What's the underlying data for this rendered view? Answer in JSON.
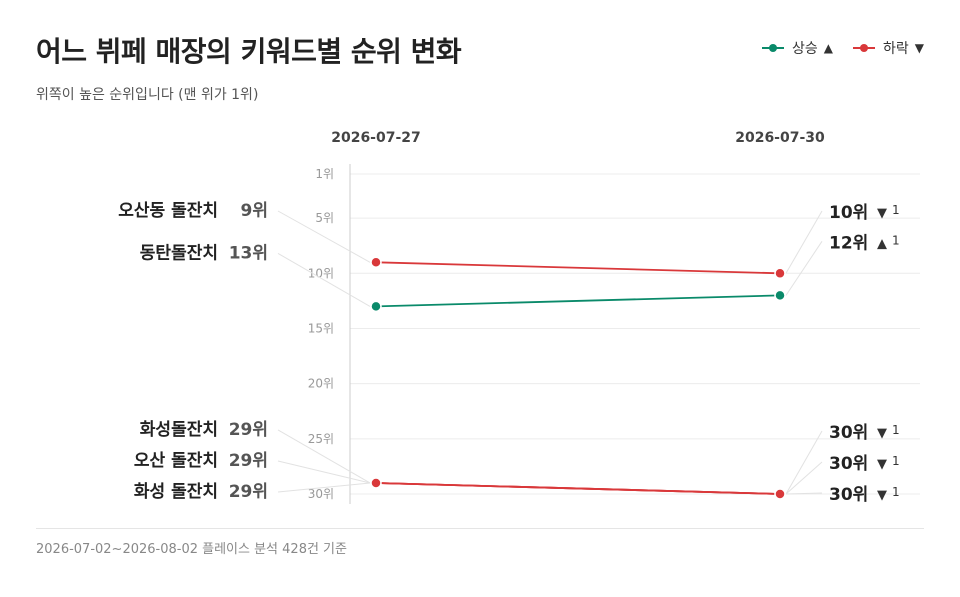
{
  "chart_data": {
    "type": "slope",
    "title": "어느 뷔페 매장의 키워드별 순위 변화",
    "subtitle": "위쪽이 높은 순위입니다 (맨 위가 1위)",
    "columns": [
      "2026-07-27",
      "2026-07-30"
    ],
    "y_axis": {
      "ticks": [
        "1위",
        "5위",
        "10위",
        "15위",
        "20위",
        "25위",
        "30위"
      ],
      "tick_values": [
        1,
        5,
        10,
        15,
        20,
        25,
        30
      ],
      "ylim": [
        1,
        30
      ],
      "inverted": true
    },
    "legend": [
      {
        "label": "상승",
        "arrow": "▲",
        "color": "#0a8a6a"
      },
      {
        "label": "하락",
        "arrow": "▼",
        "color": "#d9383a"
      }
    ],
    "series": [
      {
        "name": "오산동 돌잔치",
        "start": 9,
        "end": 10,
        "start_label": "9위",
        "end_label": "10위",
        "change_arrow": "▼",
        "change_value": "1",
        "trend": "down"
      },
      {
        "name": "동탄돌잔치",
        "start": 13,
        "end": 12,
        "start_label": "13위",
        "end_label": "12위",
        "change_arrow": "▲",
        "change_value": "1",
        "trend": "up"
      },
      {
        "name": "화성돌잔치",
        "start": 29,
        "end": 30,
        "start_label": "29위",
        "end_label": "30위",
        "change_arrow": "▼",
        "change_value": "1",
        "trend": "down"
      },
      {
        "name": "오산 돌잔치",
        "start": 29,
        "end": 30,
        "start_label": "29위",
        "end_label": "30위",
        "change_arrow": "▼",
        "change_value": "1",
        "trend": "down"
      },
      {
        "name": "화성 돌잔치",
        "start": 29,
        "end": 30,
        "start_label": "29위",
        "end_label": "30위",
        "change_arrow": "▼",
        "change_value": "1",
        "trend": "down"
      }
    ]
  },
  "footer": {
    "text": "2026-07-02~2026-08-02 플레이스 분석 428건 기준"
  },
  "colors": {
    "up": "#0a8a6a",
    "down": "#d9383a",
    "grid": "#ececec",
    "axis": "#cccccc",
    "connector": "#e2e2e2"
  }
}
